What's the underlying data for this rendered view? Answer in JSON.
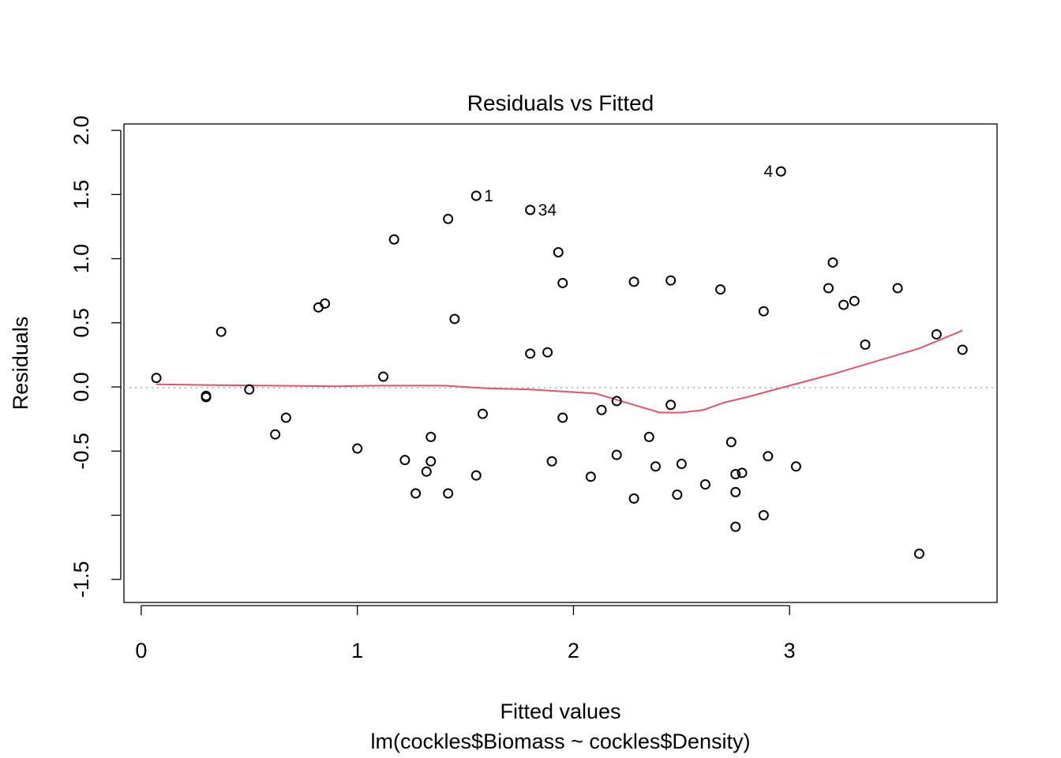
{
  "chart_data": {
    "type": "scatter",
    "title": "Residuals vs Fitted",
    "xlabel": "Fitted values",
    "ylabel": "Residuals",
    "subtitle": "lm(cockles$Biomass ~ cockles$Density)",
    "xlim": [
      -0.08,
      3.96
    ],
    "ylim": [
      -1.68,
      2.05
    ],
    "x_ticks": [
      0,
      1,
      2,
      3
    ],
    "x_tick_labels": [
      "0",
      "1",
      "2",
      "3"
    ],
    "y_ticks": [
      -1.5,
      -1.0,
      -0.5,
      0.0,
      0.5,
      1.0,
      1.5,
      2.0
    ],
    "y_tick_labels": [
      "-1.5",
      "",
      "-0.5",
      "0.0",
      "0.5",
      "1.0",
      "1.5",
      "2.0"
    ],
    "grid": false,
    "reference_line": {
      "y": 0,
      "color": "#bebebe",
      "style": "dotted"
    },
    "point_color": "#000000",
    "smooth_color": "#df536b",
    "points": [
      {
        "x": 0.07,
        "y": 0.07
      },
      {
        "x": 0.3,
        "y": -0.07
      },
      {
        "x": 0.3,
        "y": -0.08
      },
      {
        "x": 0.37,
        "y": 0.43
      },
      {
        "x": 0.5,
        "y": -0.02
      },
      {
        "x": 0.62,
        "y": -0.37
      },
      {
        "x": 0.67,
        "y": -0.24
      },
      {
        "x": 0.82,
        "y": 0.62
      },
      {
        "x": 0.85,
        "y": 0.65
      },
      {
        "x": 1.0,
        "y": -0.48
      },
      {
        "x": 1.12,
        "y": 0.08
      },
      {
        "x": 1.17,
        "y": 1.15
      },
      {
        "x": 1.22,
        "y": -0.57
      },
      {
        "x": 1.27,
        "y": -0.83
      },
      {
        "x": 1.32,
        "y": -0.66
      },
      {
        "x": 1.34,
        "y": -0.58
      },
      {
        "x": 1.34,
        "y": -0.39
      },
      {
        "x": 1.42,
        "y": 1.31
      },
      {
        "x": 1.42,
        "y": -0.83
      },
      {
        "x": 1.45,
        "y": 0.53
      },
      {
        "x": 1.55,
        "y": 1.49
      },
      {
        "x": 1.55,
        "y": -0.69
      },
      {
        "x": 1.58,
        "y": -0.21
      },
      {
        "x": 1.8,
        "y": 1.38
      },
      {
        "x": 1.8,
        "y": 0.26
      },
      {
        "x": 1.88,
        "y": 0.27
      },
      {
        "x": 1.9,
        "y": -0.58
      },
      {
        "x": 1.93,
        "y": 1.05
      },
      {
        "x": 1.95,
        "y": 0.81
      },
      {
        "x": 1.95,
        "y": -0.24
      },
      {
        "x": 2.08,
        "y": -0.7
      },
      {
        "x": 2.13,
        "y": -0.18
      },
      {
        "x": 2.2,
        "y": -0.11
      },
      {
        "x": 2.2,
        "y": -0.53
      },
      {
        "x": 2.28,
        "y": 0.82
      },
      {
        "x": 2.28,
        "y": -0.87
      },
      {
        "x": 2.35,
        "y": -0.39
      },
      {
        "x": 2.38,
        "y": -0.62
      },
      {
        "x": 2.45,
        "y": 0.83
      },
      {
        "x": 2.45,
        "y": -0.14
      },
      {
        "x": 2.48,
        "y": -0.84
      },
      {
        "x": 2.5,
        "y": -0.6
      },
      {
        "x": 2.61,
        "y": -0.76
      },
      {
        "x": 2.68,
        "y": 0.76
      },
      {
        "x": 2.73,
        "y": -0.43
      },
      {
        "x": 2.75,
        "y": -0.68
      },
      {
        "x": 2.75,
        "y": -0.82
      },
      {
        "x": 2.75,
        "y": -1.09
      },
      {
        "x": 2.78,
        "y": -0.67
      },
      {
        "x": 2.88,
        "y": 0.59
      },
      {
        "x": 2.88,
        "y": -1.0
      },
      {
        "x": 2.9,
        "y": -0.54
      },
      {
        "x": 2.96,
        "y": 1.68
      },
      {
        "x": 3.03,
        "y": -0.62
      },
      {
        "x": 3.18,
        "y": 0.77
      },
      {
        "x": 3.2,
        "y": 0.97
      },
      {
        "x": 3.25,
        "y": 0.64
      },
      {
        "x": 3.3,
        "y": 0.67
      },
      {
        "x": 3.35,
        "y": 0.33
      },
      {
        "x": 3.5,
        "y": 0.77
      },
      {
        "x": 3.6,
        "y": -1.3
      },
      {
        "x": 3.68,
        "y": 0.41
      },
      {
        "x": 3.8,
        "y": 0.29
      }
    ],
    "point_labels": [
      {
        "text": "1",
        "x": 1.55,
        "y": 1.49,
        "side": "right"
      },
      {
        "text": "34",
        "x": 1.8,
        "y": 1.38,
        "side": "right"
      },
      {
        "text": "4",
        "x": 2.96,
        "y": 1.68,
        "side": "left"
      }
    ],
    "smooth_line": [
      {
        "x": 0.07,
        "y": 0.02
      },
      {
        "x": 0.3,
        "y": 0.015
      },
      {
        "x": 0.6,
        "y": 0.01
      },
      {
        "x": 0.9,
        "y": 0.005
      },
      {
        "x": 1.1,
        "y": 0.01
      },
      {
        "x": 1.4,
        "y": 0.01
      },
      {
        "x": 1.6,
        "y": -0.01
      },
      {
        "x": 1.8,
        "y": -0.02
      },
      {
        "x": 2.0,
        "y": -0.04
      },
      {
        "x": 2.1,
        "y": -0.05
      },
      {
        "x": 2.2,
        "y": -0.1
      },
      {
        "x": 2.3,
        "y": -0.15
      },
      {
        "x": 2.4,
        "y": -0.2
      },
      {
        "x": 2.5,
        "y": -0.2
      },
      {
        "x": 2.6,
        "y": -0.18
      },
      {
        "x": 2.7,
        "y": -0.12
      },
      {
        "x": 2.8,
        "y": -0.08
      },
      {
        "x": 3.0,
        "y": 0.01
      },
      {
        "x": 3.2,
        "y": 0.1
      },
      {
        "x": 3.4,
        "y": 0.2
      },
      {
        "x": 3.6,
        "y": 0.3
      },
      {
        "x": 3.8,
        "y": 0.44
      }
    ]
  }
}
